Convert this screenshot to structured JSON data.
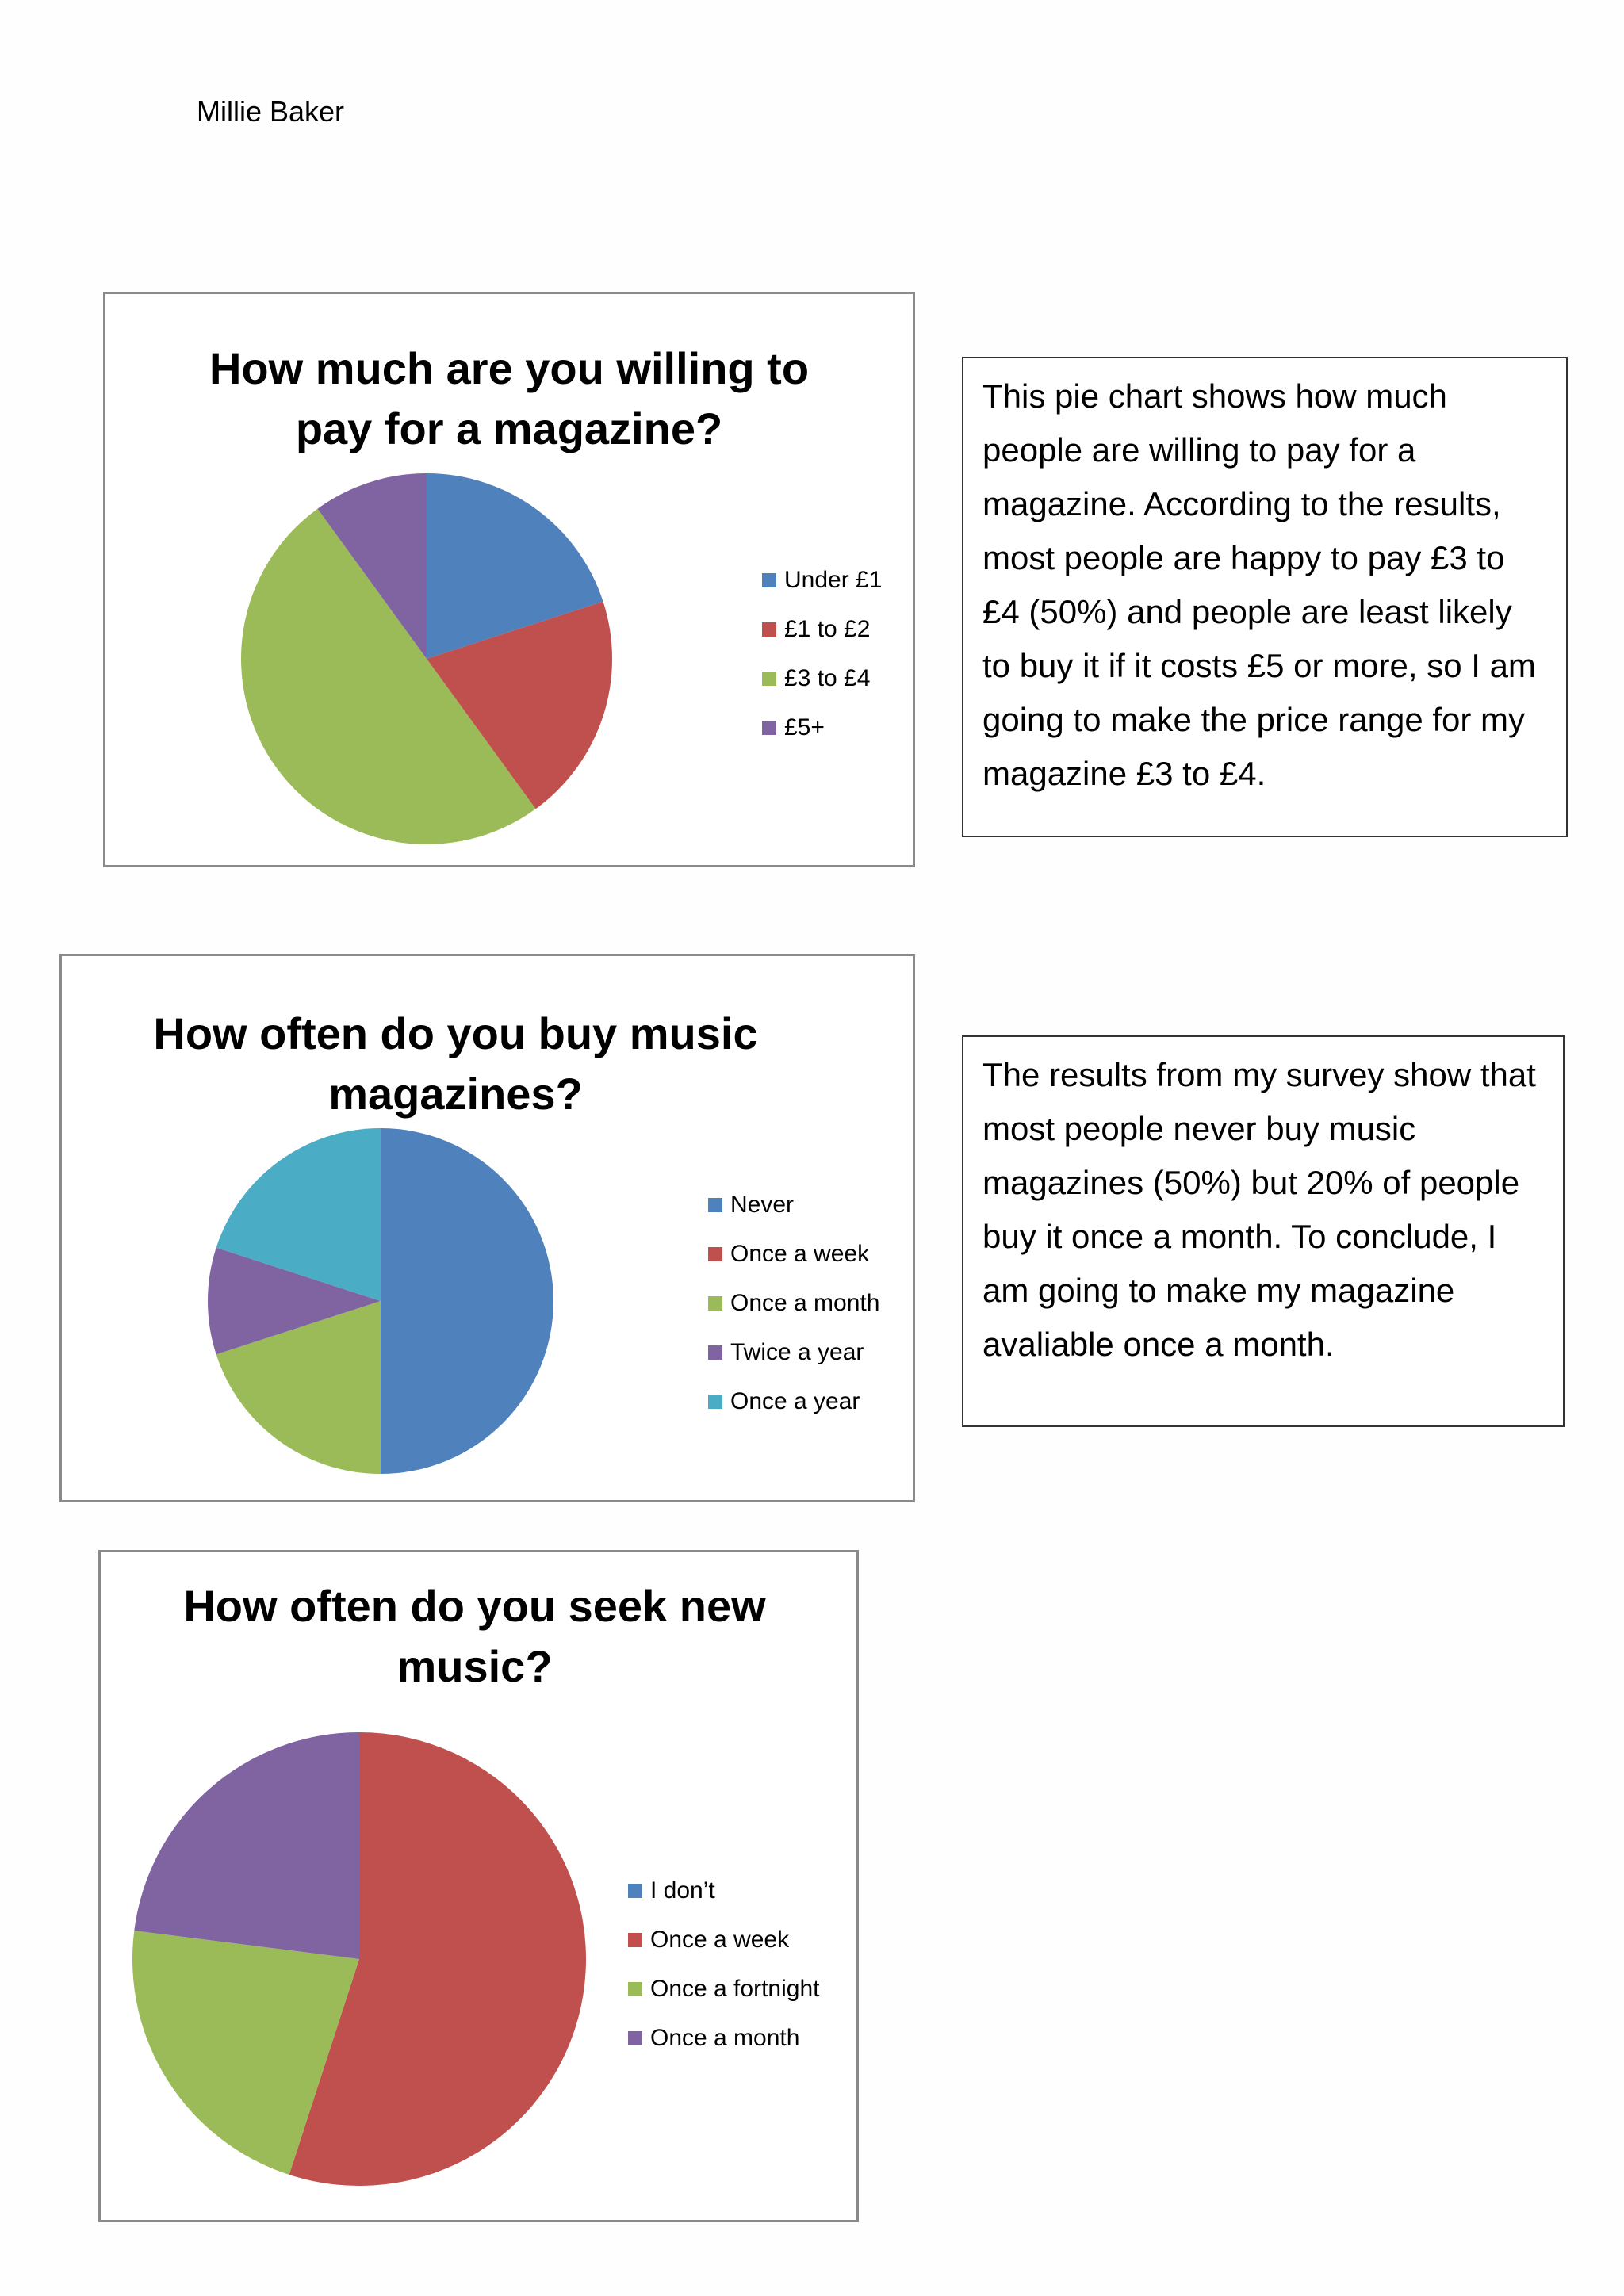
{
  "document": {
    "author": "Millie Baker"
  },
  "palette": {
    "blue": "#4f81bd",
    "red": "#c0504d",
    "green": "#9bbb59",
    "purple": "#8064a2",
    "aqua": "#4bacc6"
  },
  "chart_data": [
    {
      "type": "pie",
      "title": "How much are you willing to\npay for a magazine?",
      "categories": [
        "Under £1",
        "£1 to £2",
        "£3 to £4",
        "£5+"
      ],
      "values": [
        20,
        20,
        50,
        10
      ],
      "colors": [
        "#4f81bd",
        "#c0504d",
        "#9bbb59",
        "#8064a2"
      ],
      "legend_position": "right"
    },
    {
      "type": "pie",
      "title": "How often do you buy music\nmagazines?",
      "categories": [
        "Never",
        "Once a week",
        "Once a month",
        "Twice a year",
        "Once a year"
      ],
      "values": [
        50,
        0,
        20,
        10,
        20
      ],
      "colors": [
        "#4f81bd",
        "#c0504d",
        "#9bbb59",
        "#8064a2",
        "#4bacc6"
      ],
      "legend_position": "right"
    },
    {
      "type": "pie",
      "title": "How often do you seek new\nmusic?",
      "categories": [
        "I don’t",
        "Once a week",
        "Once a fortnight",
        "Once a month"
      ],
      "values": [
        0,
        55,
        22,
        23
      ],
      "colors": [
        "#4f81bd",
        "#c0504d",
        "#9bbb59",
        "#8064a2"
      ],
      "legend_position": "right"
    }
  ],
  "commentary": [
    {
      "text": "This pie chart shows how much people are willing to pay for a magazine. According to the results, most people are happy to pay £3 to £4 (50%) and people are least likely to buy it if it costs £5 or more, so I am going to make the price range for my magazine £3 to £4."
    },
    {
      "text": "The results from my survey show that most people never buy music magazines (50%) but 20% of people buy it once a month. To conclude, I am going to make my magazine avaliable once a month."
    }
  ]
}
